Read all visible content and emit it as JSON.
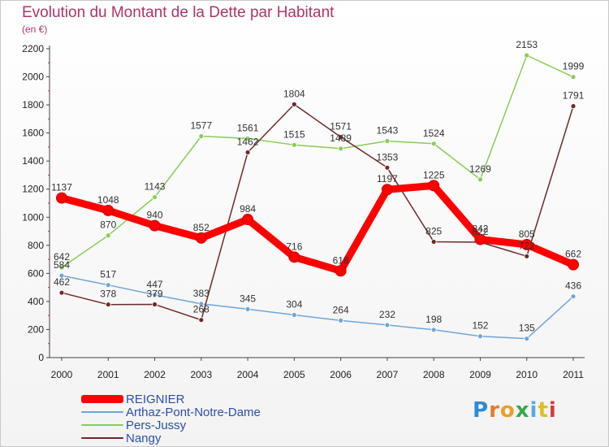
{
  "title": "Evolution du Montant de la Dette par Habitant",
  "subtitle": "(en €)",
  "logo": "Proxiti",
  "chart_data": {
    "type": "line",
    "title": "Evolution du Montant de la Dette par Habitant",
    "subtitle": "(en €)",
    "x": [
      "2000",
      "2001",
      "2002",
      "2003",
      "2004",
      "2005",
      "2006",
      "2007",
      "2008",
      "2009",
      "2010",
      "2011"
    ],
    "ylim": [
      0,
      2200
    ],
    "yticks": [
      0,
      200,
      400,
      600,
      800,
      1000,
      1200,
      1400,
      1600,
      1800,
      2000,
      2200
    ],
    "grid": false,
    "legend": "bottom-left",
    "series": [
      {
        "name": "REIGNIER",
        "color": "#ff0000",
        "values": [
          1137,
          1048,
          940,
          852,
          984,
          716,
          618,
          1197,
          1225,
          842,
          805,
          662
        ],
        "labels": [
          "1137",
          "1048",
          "940",
          "852",
          "984",
          "716",
          "618",
          "1197",
          "1225",
          "842",
          "805",
          "662"
        ]
      },
      {
        "name": "Arthaz-Pont-Notre-Dame",
        "color": "#6ea6d8",
        "values": [
          584,
          517,
          447,
          383,
          345,
          304,
          264,
          232,
          198,
          152,
          135,
          436
        ],
        "labels": [
          "584",
          "517",
          "447",
          "383",
          "345",
          "304",
          "264",
          "232",
          "198",
          "152",
          "135",
          "436"
        ]
      },
      {
        "name": "Pers-Jussy",
        "color": "#88cc55",
        "values": [
          642,
          870,
          1143,
          1577,
          1561,
          1515,
          1489,
          1543,
          1524,
          1269,
          2153,
          1999
        ],
        "labels": [
          "642",
          "870",
          "1143",
          "1577",
          "1561",
          "1515",
          "1489",
          "1543",
          "1524",
          "1269",
          "2153",
          "1999"
        ]
      },
      {
        "name": "Nangy",
        "color": "#6e2a2a",
        "values": [
          462,
          378,
          379,
          268,
          1462,
          1804,
          1571,
          1353,
          825,
          822,
          722,
          1791
        ],
        "labels": [
          "462",
          "378",
          "379",
          "268",
          "1462",
          "1804",
          "1571",
          "1353",
          "825",
          "822",
          "722",
          "1791"
        ]
      }
    ]
  }
}
